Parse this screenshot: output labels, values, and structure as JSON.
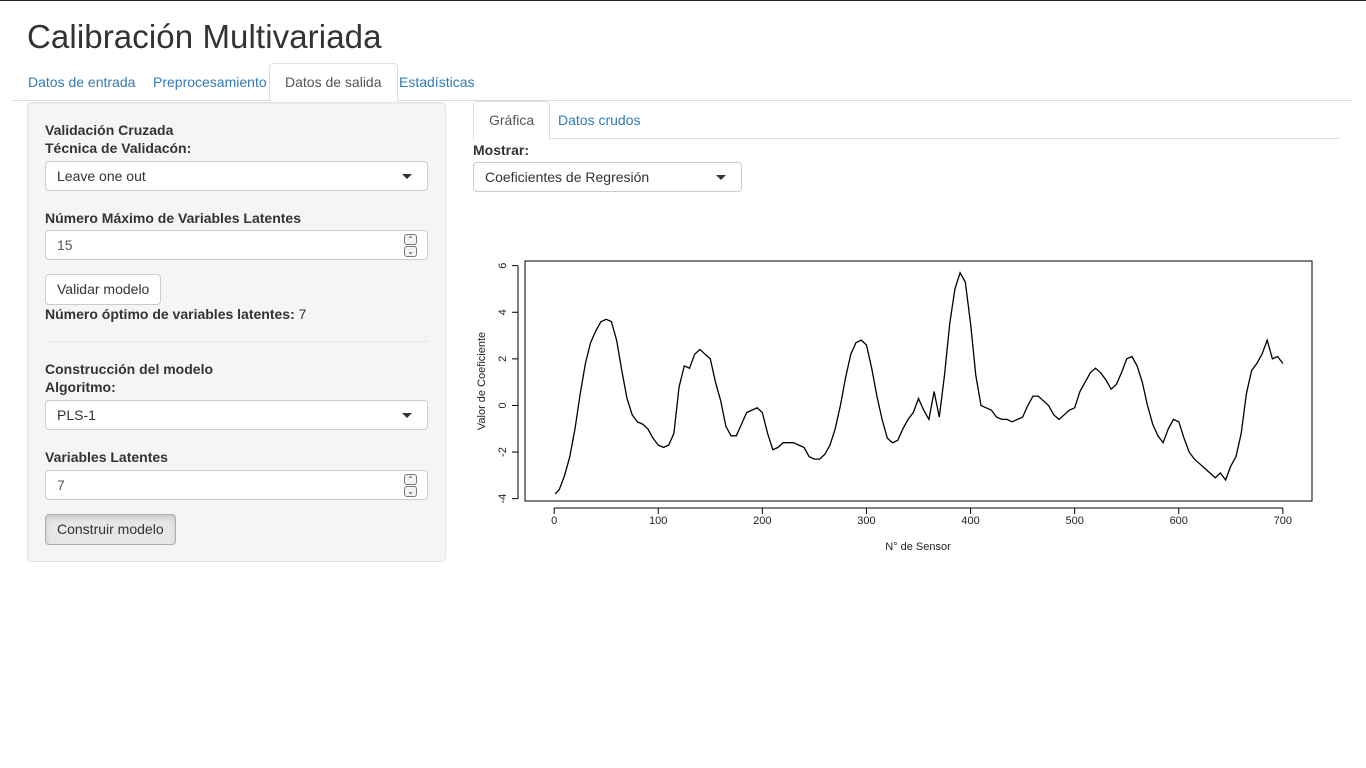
{
  "app": {
    "title": "Calibración Multivariada"
  },
  "main_tabs": [
    {
      "label": "Datos de entrada",
      "active": false
    },
    {
      "label": "Preprocesamiento",
      "active": false
    },
    {
      "label": "Datos de salida",
      "active": true
    },
    {
      "label": "Estadísticas",
      "active": false
    }
  ],
  "sidebar": {
    "cv_heading": "Validación Cruzada",
    "technique_label": "Técnica de Validacón:",
    "technique_value": "Leave one out",
    "max_lv_label": "Número Máximo de Variables Latentes",
    "max_lv_value": "15",
    "validate_button": "Validar modelo",
    "optimal_label": "Número óptimo de variables latentes:",
    "optimal_value": " 7",
    "build_heading": "Construcción del modelo",
    "algorithm_label": "Algoritmo:",
    "algorithm_value": "PLS-1",
    "lv_label": "Variables Latentes",
    "lv_value": "7",
    "build_button": "Construir modelo"
  },
  "sub_tabs": [
    {
      "label": "Gráfica",
      "active": true
    },
    {
      "label": "Datos crudos",
      "active": false
    }
  ],
  "display": {
    "label": "Mostrar:",
    "value": "Coeficientes de Regresión"
  },
  "chart_data": {
    "type": "line",
    "title": "",
    "xlabel": "N° de Sensor",
    "ylabel": "Valor de Coeficiente",
    "xlim": [
      -28,
      728
    ],
    "ylim": [
      -4.1,
      6.2
    ],
    "xticks": [
      0,
      100,
      200,
      300,
      400,
      500,
      600,
      700
    ],
    "yticks": [
      -4,
      -2,
      0,
      2,
      4,
      6
    ],
    "grid": false,
    "line_color": "#000000",
    "series": [
      {
        "x": [
          1,
          5,
          10,
          15,
          20,
          25,
          30,
          35,
          40,
          45,
          50,
          55,
          60,
          65,
          70,
          75,
          80,
          85,
          90,
          95,
          100,
          105,
          110,
          115,
          120,
          125,
          130,
          135,
          140,
          145,
          150,
          155,
          160,
          165,
          170,
          175,
          180,
          185,
          190,
          195,
          200,
          205,
          210,
          215,
          220,
          225,
          230,
          235,
          240,
          245,
          250,
          255,
          260,
          265,
          270,
          275,
          280,
          285,
          290,
          295,
          300,
          305,
          310,
          315,
          320,
          325,
          330,
          335,
          340,
          345,
          350,
          355,
          360,
          365,
          370,
          375,
          380,
          385,
          390,
          395,
          400,
          405,
          410,
          415,
          420,
          425,
          430,
          435,
          440,
          445,
          450,
          455,
          460,
          465,
          470,
          475,
          480,
          485,
          490,
          495,
          500,
          505,
          510,
          515,
          520,
          525,
          530,
          535,
          540,
          545,
          550,
          555,
          560,
          565,
          570,
          575,
          580,
          585,
          590,
          595,
          600,
          605,
          610,
          615,
          620,
          625,
          630,
          635,
          640,
          645,
          650,
          655,
          660,
          665,
          670,
          675,
          680,
          685,
          690,
          695,
          700
        ],
        "values": [
          -3.8,
          -3.6,
          -3.0,
          -2.2,
          -1.0,
          0.5,
          1.8,
          2.7,
          3.2,
          3.6,
          3.7,
          3.6,
          2.8,
          1.5,
          0.3,
          -0.4,
          -0.7,
          -0.8,
          -1.0,
          -1.4,
          -1.7,
          -1.8,
          -1.7,
          -1.2,
          0.8,
          1.7,
          1.6,
          2.2,
          2.4,
          2.2,
          2.0,
          1.0,
          0.2,
          -0.9,
          -1.3,
          -1.3,
          -0.8,
          -0.3,
          -0.2,
          -0.1,
          -0.3,
          -1.2,
          -1.9,
          -1.8,
          -1.6,
          -1.6,
          -1.6,
          -1.7,
          -1.8,
          -2.2,
          -2.3,
          -2.3,
          -2.1,
          -1.7,
          -1.0,
          0.0,
          1.2,
          2.2,
          2.7,
          2.8,
          2.6,
          1.6,
          0.4,
          -0.6,
          -1.4,
          -1.6,
          -1.5,
          -1.0,
          -0.6,
          -0.3,
          0.3,
          -0.2,
          -0.6,
          0.6,
          -0.5,
          1.3,
          3.5,
          5.0,
          5.7,
          5.3,
          3.5,
          1.3,
          0.0,
          -0.1,
          -0.2,
          -0.5,
          -0.6,
          -0.6,
          -0.7,
          -0.6,
          -0.5,
          0.0,
          0.4,
          0.4,
          0.2,
          0.0,
          -0.4,
          -0.6,
          -0.4,
          -0.2,
          -0.1,
          0.6,
          1.0,
          1.4,
          1.6,
          1.4,
          1.1,
          0.7,
          0.9,
          1.4,
          2.0,
          2.1,
          1.7,
          1.0,
          0.0,
          -0.8,
          -1.3,
          -1.6,
          -1.0,
          -0.6,
          -0.7,
          -1.4,
          -2.0,
          -2.3,
          -2.5,
          -2.7,
          -2.9,
          -3.1,
          -2.9,
          -3.2,
          -2.6,
          -2.2,
          -1.2,
          0.5,
          1.5,
          1.8,
          2.2,
          2.8,
          2.0,
          2.1,
          1.8
        ]
      }
    ]
  }
}
